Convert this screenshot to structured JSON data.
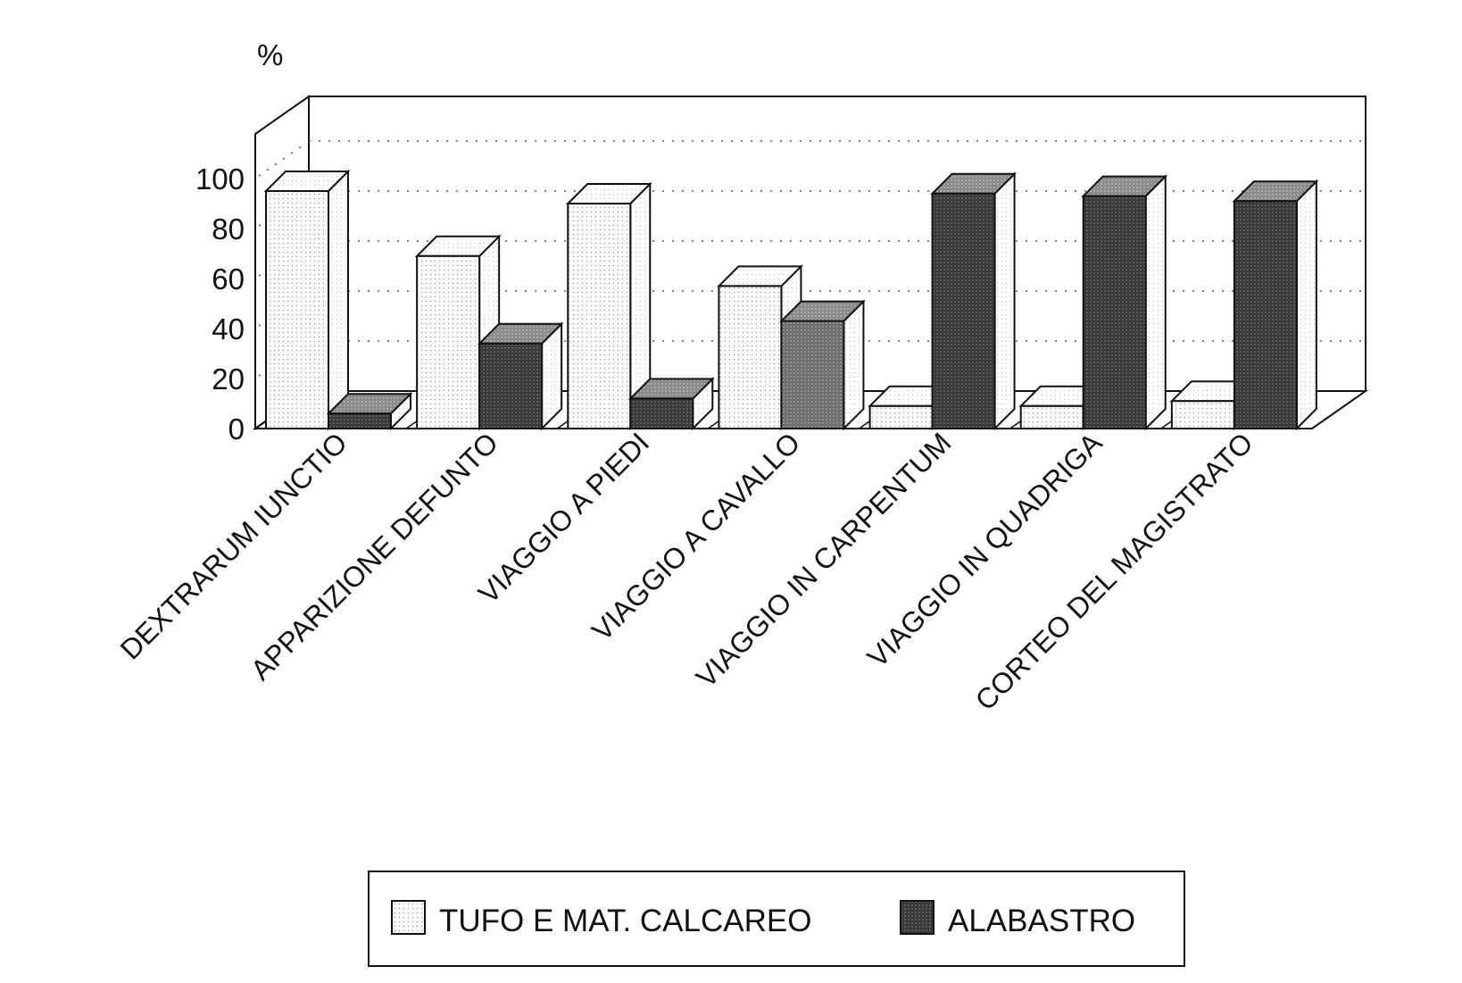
{
  "chart_data": {
    "type": "bar",
    "unit_label": "%",
    "categories": [
      "DEXTRARUM IUNCTIO",
      "APPARIZIONE DEFUNTO",
      "VIAGGIO A PIEDI",
      "VIAGGIO A CAVALLO",
      "VIAGGIO IN CARPENTUM",
      "VIAGGIO IN QUADRIGA",
      "CORTEO DEL MAGISTRATO"
    ],
    "series": [
      {
        "name": "TUFO E MAT. CALCAREO",
        "values": [
          95,
          69,
          90,
          57,
          9,
          9,
          11
        ],
        "color": "#f2f2f2"
      },
      {
        "name": "ALABASTRO",
        "values": [
          6,
          34,
          12,
          43,
          94,
          93,
          91
        ],
        "color": "#4a4a4a"
      }
    ],
    "y_ticks": [
      "0",
      "20",
      "40",
      "60",
      "80",
      "100"
    ],
    "ylim": [
      0,
      100
    ],
    "grid": true,
    "legend_position": "bottom",
    "colors": {
      "frame": "#111111",
      "grid": "#555555",
      "light_bar": "#f2f2f2",
      "dark_bar": "#4a4a4a"
    }
  }
}
